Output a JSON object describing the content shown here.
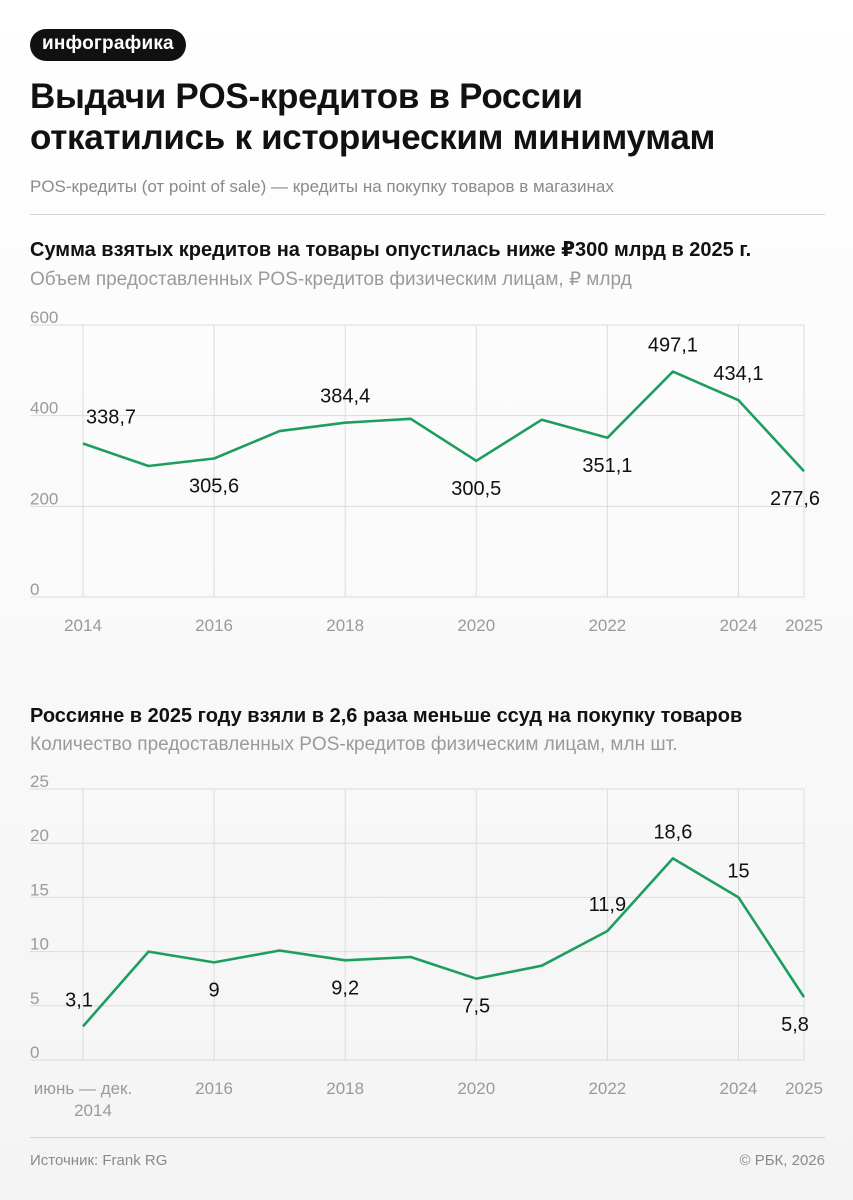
{
  "header": {
    "tag": "инфографика",
    "title": "Выдачи POS-кредитов в России\nоткатились к историческим минимумам",
    "subtitle": "POS-кредиты (от point of sale) — кредиты на покупку товаров в магазинах"
  },
  "footer": {
    "source": "Источник: Frank RG",
    "copyright": "© РБК, 2026"
  },
  "colors": {
    "line": "#1e9e5e",
    "grid": "#dcdcdc"
  },
  "chart_data": [
    {
      "type": "line",
      "title": "Сумма взятых кредитов на товары опустилась ниже ₽300 млрд в 2025 г.",
      "subtitle": "Объем предоставленных POS-кредитов физическим лицам, ₽ млрд",
      "x": [
        2014,
        2015,
        2016,
        2017,
        2018,
        2019,
        2020,
        2021,
        2022,
        2023,
        2024,
        2025
      ],
      "values": [
        338.7,
        289,
        305.6,
        366,
        384.4,
        393,
        300.5,
        391,
        351.1,
        497.1,
        434.1,
        277.6
      ],
      "data_labels": [
        {
          "index": 0,
          "text": "338,7",
          "position": "above"
        },
        {
          "index": 2,
          "text": "305,6",
          "position": "below"
        },
        {
          "index": 4,
          "text": "384,4",
          "position": "above"
        },
        {
          "index": 6,
          "text": "300,5",
          "position": "below"
        },
        {
          "index": 8,
          "text": "351,1",
          "position": "below"
        },
        {
          "index": 9,
          "text": "497,1",
          "position": "above"
        },
        {
          "index": 10,
          "text": "434,1",
          "position": "above"
        },
        {
          "index": 11,
          "text": "277,6",
          "position": "below"
        }
      ],
      "x_ticks": [
        {
          "index": 0,
          "label": "2014"
        },
        {
          "index": 2,
          "label": "2016"
        },
        {
          "index": 4,
          "label": "2018"
        },
        {
          "index": 6,
          "label": "2020"
        },
        {
          "index": 8,
          "label": "2022"
        },
        {
          "index": 10,
          "label": "2024"
        },
        {
          "index": 11,
          "label": "2025"
        }
      ],
      "y_ticks": [
        {
          "value": 0,
          "label": "0"
        },
        {
          "value": 200,
          "label": "200"
        },
        {
          "value": 400,
          "label": "400"
        },
        {
          "value": 600,
          "label": "600"
        }
      ],
      "ylim": [
        0,
        600
      ]
    },
    {
      "type": "line",
      "title": "Россияне в 2025 году взяли в 2,6 раза меньше ссуд на покупку товаров",
      "subtitle": "Количество предоставленных POS-кредитов физическим лицам, млн шт.",
      "x": [
        "июнь — дек. 2014",
        2015,
        2016,
        2017,
        2018,
        2019,
        2020,
        2021,
        2022,
        2023,
        2024,
        2025
      ],
      "values": [
        3.1,
        10,
        9,
        10.1,
        9.2,
        9.5,
        7.5,
        8.7,
        11.9,
        18.6,
        15,
        5.8
      ],
      "data_labels": [
        {
          "index": 0,
          "text": "3,1",
          "position": "above"
        },
        {
          "index": 2,
          "text": "9",
          "position": "below"
        },
        {
          "index": 4,
          "text": "9,2",
          "position": "below"
        },
        {
          "index": 6,
          "text": "7,5",
          "position": "below"
        },
        {
          "index": 8,
          "text": "11,9",
          "position": "above"
        },
        {
          "index": 9,
          "text": "18,6",
          "position": "above"
        },
        {
          "index": 10,
          "text": "15",
          "position": "above"
        },
        {
          "index": 11,
          "text": "5,8",
          "position": "below"
        }
      ],
      "x_ticks": [
        {
          "index": 0,
          "label": "июнь — дек.",
          "label2": "2014"
        },
        {
          "index": 2,
          "label": "2016"
        },
        {
          "index": 4,
          "label": "2018"
        },
        {
          "index": 6,
          "label": "2020"
        },
        {
          "index": 8,
          "label": "2022"
        },
        {
          "index": 10,
          "label": "2024"
        },
        {
          "index": 11,
          "label": "2025"
        }
      ],
      "y_ticks": [
        {
          "value": 0,
          "label": "0"
        },
        {
          "value": 5,
          "label": "5"
        },
        {
          "value": 10,
          "label": "10"
        },
        {
          "value": 15,
          "label": "15"
        },
        {
          "value": 20,
          "label": "20"
        },
        {
          "value": 25,
          "label": "25"
        }
      ],
      "ylim": [
        0,
        25
      ]
    }
  ]
}
